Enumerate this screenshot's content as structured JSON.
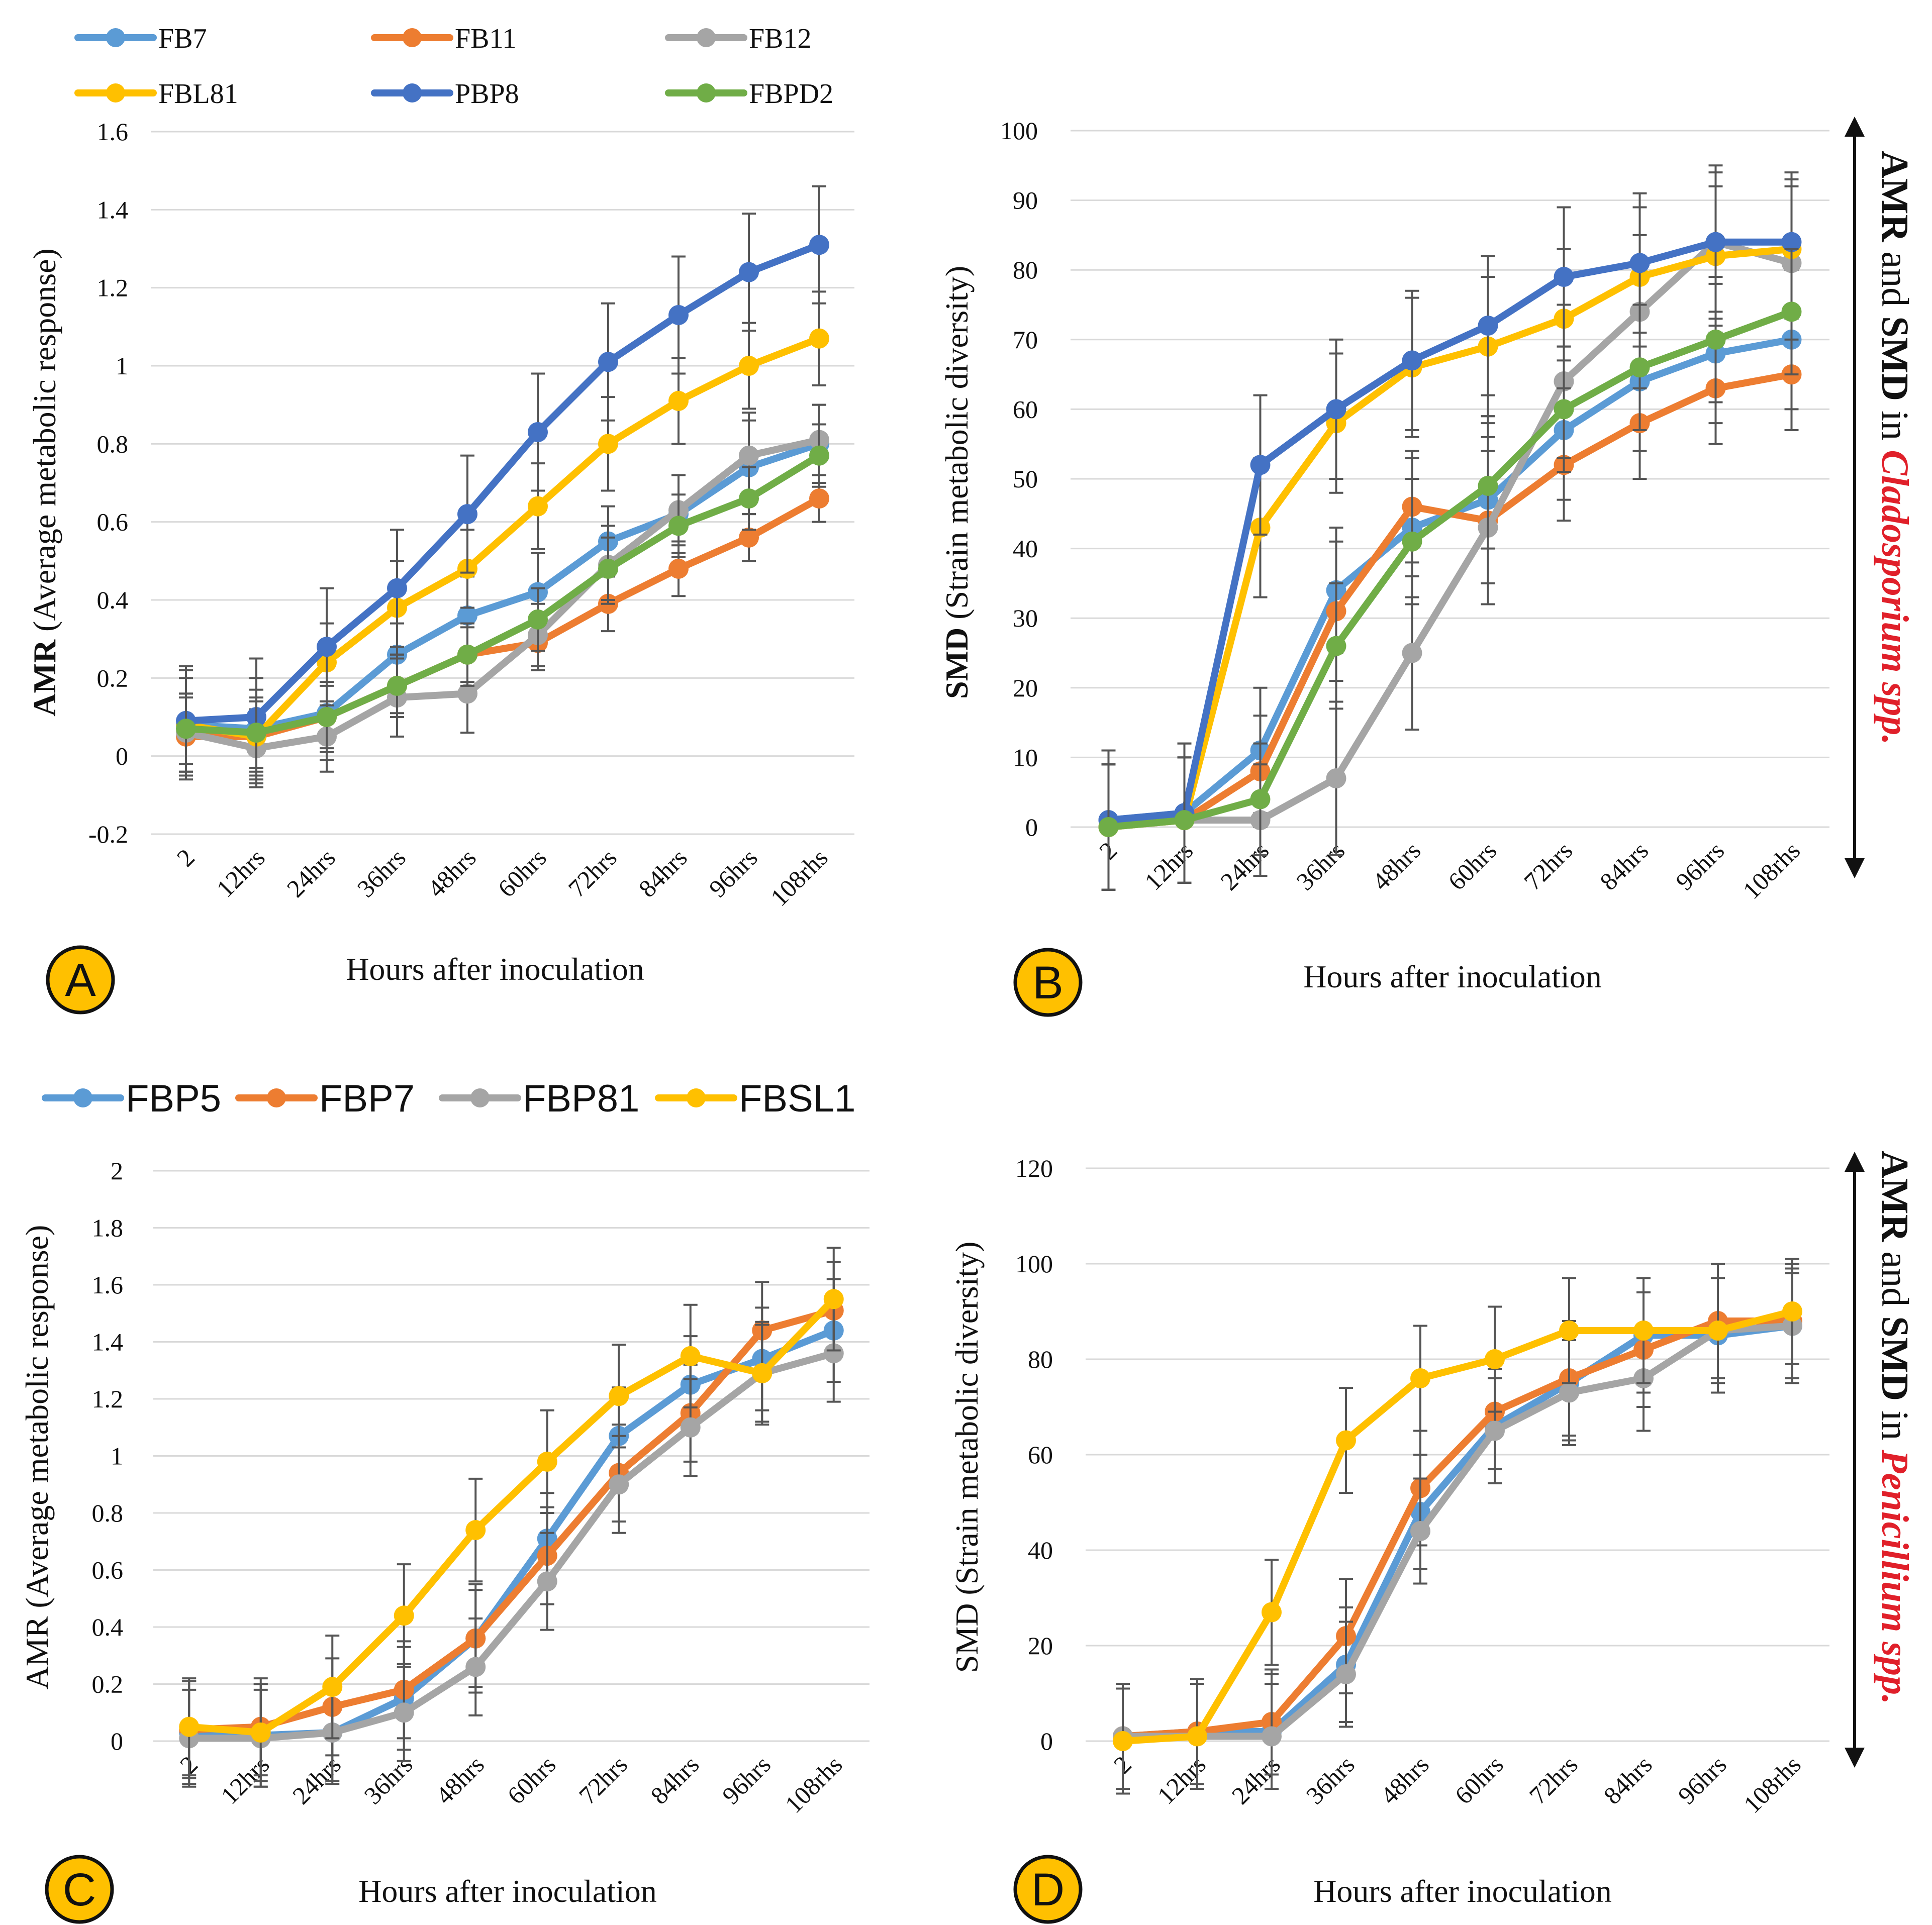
{
  "chart_data": [
    {
      "id": "A",
      "type": "line",
      "badge": "A",
      "xlabel": "Hours after inoculation",
      "ylabel_bold": "AMR",
      "ylabel_rest": " (Average metabolic response)",
      "ylim": [
        -0.2,
        1.6
      ],
      "yticks": [
        "-0.2",
        "0",
        "0.2",
        "0.4",
        "0.6",
        "0.8",
        "1",
        "1.2",
        "1.4",
        "1.6"
      ],
      "ytick_values": [
        -0.2,
        0,
        0.2,
        0.4,
        0.6,
        0.8,
        1,
        1.2,
        1.4,
        1.6
      ],
      "categories": [
        "2",
        "12hrs",
        "24hrs",
        "36hrs",
        "48hrs",
        "60hrs",
        "72hrs",
        "84hrs",
        "96hrs",
        "108rhs"
      ],
      "series": [
        {
          "name": "FB7",
          "color": "#5b9bd5",
          "values": [
            0.08,
            0.07,
            0.11,
            0.26,
            0.36,
            0.42,
            0.55,
            0.62,
            0.74,
            0.8
          ],
          "err": [
            0.14,
            0.13,
            0.12,
            0.08,
            0.1,
            0.1,
            0.09,
            0.1,
            0.12,
            0.1
          ]
        },
        {
          "name": "FB11",
          "color": "#ed7d31",
          "values": [
            0.05,
            0.05,
            0.1,
            0.18,
            0.26,
            0.29,
            0.39,
            0.48,
            0.56,
            0.66
          ],
          "err": [
            0.1,
            0.09,
            0.08,
            0.07,
            0.07,
            0.07,
            0.07,
            0.07,
            0.06,
            0.06
          ]
        },
        {
          "name": "FB12",
          "color": "#a5a5a5",
          "values": [
            0.06,
            0.02,
            0.05,
            0.15,
            0.16,
            0.31,
            0.49,
            0.63,
            0.77,
            0.81
          ],
          "err": [
            0.1,
            0.1,
            0.09,
            0.1,
            0.1,
            0.08,
            0.1,
            0.09,
            0.11,
            0.09
          ]
        },
        {
          "name": "FBL81",
          "color": "#ffc000",
          "values": [
            0.08,
            0.05,
            0.24,
            0.38,
            0.48,
            0.64,
            0.8,
            0.91,
            1.0,
            1.07
          ],
          "err": [
            0.12,
            0.12,
            0.1,
            0.12,
            0.1,
            0.11,
            0.12,
            0.11,
            0.11,
            0.12
          ]
        },
        {
          "name": "PBP8",
          "color": "#4472c4",
          "values": [
            0.09,
            0.1,
            0.28,
            0.43,
            0.62,
            0.83,
            1.01,
            1.13,
            1.24,
            1.31
          ],
          "err": [
            0.14,
            0.15,
            0.15,
            0.15,
            0.15,
            0.15,
            0.15,
            0.15,
            0.15,
            0.15
          ]
        },
        {
          "name": "FBPD2",
          "color": "#70ad47",
          "values": [
            0.07,
            0.06,
            0.1,
            0.18,
            0.26,
            0.35,
            0.48,
            0.59,
            0.66,
            0.77
          ],
          "err": [
            0.09,
            0.09,
            0.09,
            0.08,
            0.08,
            0.08,
            0.08,
            0.08,
            0.08,
            0.08
          ]
        }
      ]
    },
    {
      "id": "B",
      "type": "line",
      "badge": "B",
      "xlabel": "Hours after inoculation",
      "ylabel_bold": "SMD",
      "ylabel_rest": " (Strain metabolic diversity)",
      "ylim": [
        0,
        100
      ],
      "yticks": [
        "0",
        "10",
        "20",
        "30",
        "40",
        "50",
        "60",
        "70",
        "80",
        "90",
        "100"
      ],
      "ytick_values": [
        0,
        10,
        20,
        30,
        40,
        50,
        60,
        70,
        80,
        90,
        100
      ],
      "categories": [
        "2",
        "12hrs",
        "24hrs",
        "36hrs",
        "48hrs",
        "60hrs",
        "72hrs",
        "84hrs",
        "96hrs",
        "108rhs"
      ],
      "series": [
        {
          "name": "FB7",
          "color": "#5b9bd5",
          "values": [
            1,
            2,
            11,
            34,
            43,
            47,
            57,
            64,
            68,
            70
          ],
          "err": [
            10,
            10,
            9,
            9,
            10,
            12,
            10,
            10,
            10,
            10
          ]
        },
        {
          "name": "FB11",
          "color": "#ed7d31",
          "values": [
            0,
            1,
            8,
            31,
            46,
            44,
            52,
            58,
            63,
            65
          ],
          "err": [
            9,
            9,
            8,
            10,
            8,
            12,
            8,
            8,
            8,
            8
          ]
        },
        {
          "name": "FB12",
          "color": "#a5a5a5",
          "values": [
            0,
            1,
            1,
            7,
            25,
            43,
            64,
            74,
            84,
            81
          ],
          "err": [
            9,
            9,
            8,
            11,
            11,
            11,
            11,
            11,
            11,
            11
          ]
        },
        {
          "name": "FBL81",
          "color": "#ffc000",
          "values": [
            0,
            1,
            43,
            58,
            66,
            69,
            73,
            79,
            82,
            83
          ],
          "err": [
            9,
            9,
            10,
            10,
            10,
            10,
            10,
            10,
            10,
            10
          ]
        },
        {
          "name": "PBP8",
          "color": "#4472c4",
          "values": [
            1,
            2,
            52,
            60,
            67,
            72,
            79,
            81,
            84,
            84
          ],
          "err": [
            10,
            10,
            10,
            10,
            10,
            10,
            10,
            10,
            10,
            10
          ]
        },
        {
          "name": "FBPD2",
          "color": "#70ad47",
          "values": [
            0,
            1,
            4,
            26,
            41,
            49,
            60,
            66,
            70,
            74
          ],
          "err": [
            9,
            9,
            8,
            9,
            9,
            9,
            9,
            9,
            9,
            9
          ]
        }
      ]
    },
    {
      "id": "C",
      "type": "line",
      "badge": "C",
      "xlabel": "Hours after inoculation",
      "ylabel_bold": "",
      "ylabel_rest": "AMR (Average metabolic response)",
      "ylim": [
        0,
        2
      ],
      "yticks": [
        "0",
        "0.2",
        "0.4",
        "0.6",
        "0.8",
        "1",
        "1.2",
        "1.4",
        "1.6",
        "1.8",
        "2"
      ],
      "ytick_values": [
        0,
        0.2,
        0.4,
        0.6,
        0.8,
        1.0,
        1.2,
        1.4,
        1.6,
        1.8,
        2.0
      ],
      "categories": [
        "2",
        "12hrs",
        "24hrs",
        "36hrs",
        "48hrs",
        "60hrs",
        "72hrs",
        "84hrs",
        "96hrs",
        "108rhs"
      ],
      "series": [
        {
          "name": "FBP5",
          "color": "#5b9bd5",
          "values": [
            0.03,
            0.02,
            0.03,
            0.15,
            0.36,
            0.71,
            1.07,
            1.25,
            1.34,
            1.44
          ],
          "err": [
            0.18,
            0.18,
            0.18,
            0.18,
            0.19,
            0.16,
            0.17,
            0.17,
            0.18,
            0.18
          ]
        },
        {
          "name": "FBP7",
          "color": "#ed7d31",
          "values": [
            0.04,
            0.05,
            0.12,
            0.18,
            0.36,
            0.65,
            0.94,
            1.15,
            1.44,
            1.51
          ],
          "err": [
            0.17,
            0.17,
            0.17,
            0.17,
            0.17,
            0.17,
            0.17,
            0.17,
            0.17,
            0.17
          ]
        },
        {
          "name": "FBP81",
          "color": "#a5a5a5",
          "values": [
            0.01,
            0.01,
            0.03,
            0.1,
            0.26,
            0.56,
            0.9,
            1.1,
            1.29,
            1.36
          ],
          "err": [
            0.17,
            0.17,
            0.17,
            0.17,
            0.17,
            0.17,
            0.17,
            0.17,
            0.17,
            0.17
          ]
        },
        {
          "name": "FBSL1",
          "color": "#ffc000",
          "values": [
            0.05,
            0.03,
            0.19,
            0.44,
            0.74,
            0.98,
            1.21,
            1.35,
            1.29,
            1.55
          ],
          "err": [
            0.17,
            0.17,
            0.18,
            0.18,
            0.18,
            0.18,
            0.18,
            0.18,
            0.18,
            0.18
          ]
        }
      ]
    },
    {
      "id": "D",
      "type": "line",
      "badge": "D",
      "xlabel": "Hours after inoculation",
      "ylabel_bold": "",
      "ylabel_rest": "SMD (Strain metabolic diversity)",
      "ylim": [
        0,
        120
      ],
      "yticks": [
        "0",
        "20",
        "40",
        "60",
        "80",
        "100",
        "120"
      ],
      "ytick_values": [
        0,
        20,
        40,
        60,
        80,
        100,
        120
      ],
      "categories": [
        "2",
        "12hrs",
        "24hrs",
        "36hrs",
        "48hrs",
        "60hrs",
        "72hrs",
        "84hrs",
        "96hrs",
        "108rhs"
      ],
      "series": [
        {
          "name": "FBP5",
          "color": "#5b9bd5",
          "values": [
            1,
            2,
            2,
            16,
            48,
            66,
            75,
            85,
            85,
            87
          ],
          "err": [
            11,
            11,
            12,
            12,
            12,
            12,
            12,
            12,
            12,
            12
          ]
        },
        {
          "name": "FBP7",
          "color": "#ed7d31",
          "values": [
            1,
            2,
            4,
            22,
            53,
            69,
            76,
            82,
            88,
            88
          ],
          "err": [
            11,
            11,
            11,
            12,
            12,
            12,
            12,
            12,
            12,
            12
          ]
        },
        {
          "name": "FBP81",
          "color": "#a5a5a5",
          "values": [
            1,
            1,
            1,
            14,
            44,
            65,
            73,
            76,
            86,
            87
          ],
          "err": [
            11,
            11,
            11,
            11,
            11,
            11,
            11,
            11,
            11,
            11
          ]
        },
        {
          "name": "FBSL1",
          "color": "#ffc000",
          "values": [
            0,
            1,
            27,
            63,
            76,
            80,
            86,
            86,
            86,
            90
          ],
          "err": [
            11,
            11,
            11,
            11,
            11,
            11,
            11,
            11,
            11,
            11
          ]
        }
      ]
    }
  ],
  "side_labels": {
    "top": {
      "prefix": "AMR",
      "middle": " and ",
      "smd": "SMD",
      "in": " in ",
      "genus": "Cladosporium",
      "suffix": " spp."
    },
    "bottom": {
      "prefix": "AMR",
      "middle": " and ",
      "smd": "SMD",
      "in": " in ",
      "genus": "Penicillium",
      "suffix": " spp."
    }
  },
  "theme": {
    "badge_fill": "#ffc000",
    "badge_stroke": "#111111",
    "arrow_color": "#111111"
  }
}
